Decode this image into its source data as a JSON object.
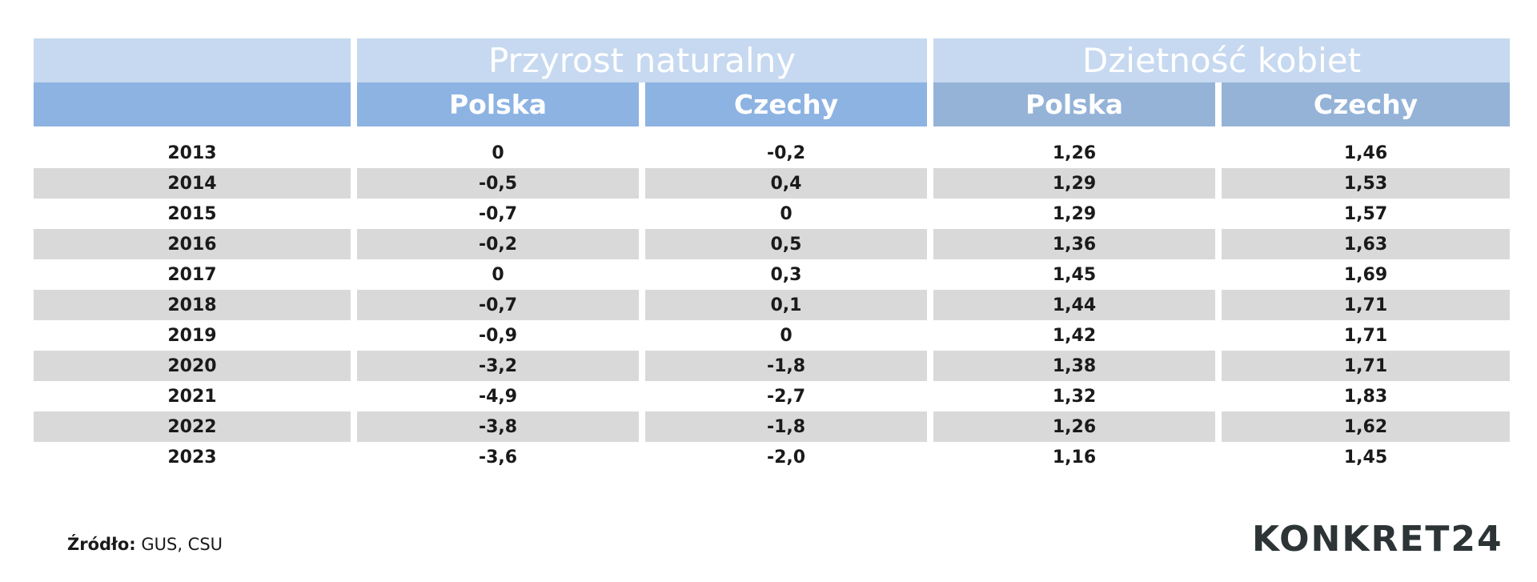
{
  "table": {
    "groups": [
      "Przyrost naturalny",
      "Dzietność kobiet"
    ],
    "columns": [
      "Polska",
      "Czechy",
      "Polska",
      "Czechy"
    ],
    "rows": [
      [
        "2013",
        "0",
        "-0,2",
        "1,26",
        "1,46"
      ],
      [
        "2014",
        "-0,5",
        "0,4",
        "1,29",
        "1,53"
      ],
      [
        "2015",
        "-0,7",
        "0",
        "1,29",
        "1,57"
      ],
      [
        "2016",
        "-0,2",
        "0,5",
        "1,36",
        "1,63"
      ],
      [
        "2017",
        "0",
        "0,3",
        "1,45",
        "1,69"
      ],
      [
        "2018",
        "-0,7",
        "0,1",
        "1,44",
        "1,71"
      ],
      [
        "2019",
        "-0,9",
        "0",
        "1,42",
        "1,71"
      ],
      [
        "2020",
        "-3,2",
        "-1,8",
        "1,38",
        "1,71"
      ],
      [
        "2021",
        "-4,9",
        "-2,7",
        "1,32",
        "1,83"
      ],
      [
        "2022",
        "-3,8",
        "-1,8",
        "1,26",
        "1,62"
      ],
      [
        "2023",
        "-3,6",
        "-2,0",
        "1,16",
        "1,45"
      ]
    ]
  },
  "source": {
    "label": "Źródło:",
    "text": "GUS, CSU"
  },
  "logo": {
    "text": "KONKRET24"
  },
  "colors": {
    "group_header": "#c6d9f0",
    "col_header_group1": "#8db3e2",
    "col_header_group2": "#95b3d7",
    "row_shade": "#d9d9d9"
  }
}
